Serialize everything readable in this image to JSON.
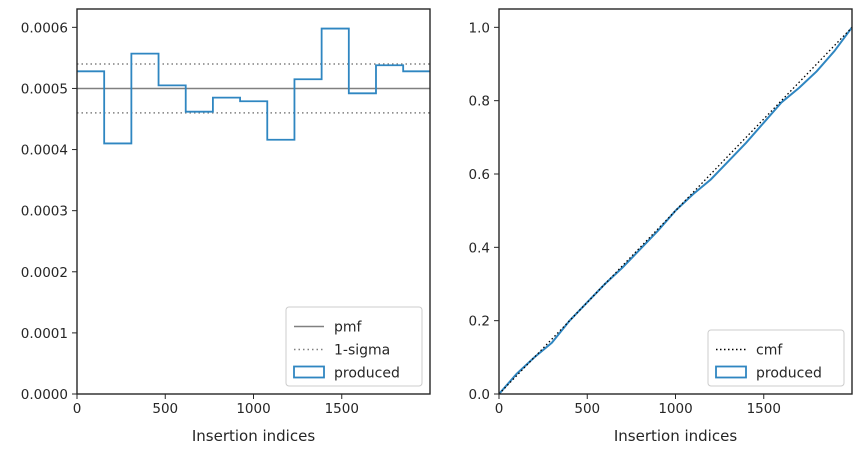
{
  "chart_data": [
    {
      "type": "step",
      "xlabel": "Insertion indices",
      "ylabel": "",
      "title": "",
      "xlim": [
        0,
        2000
      ],
      "ylim": [
        0,
        0.00063
      ],
      "xticks": [
        0,
        500,
        1000,
        1500
      ],
      "xtick_labels": [
        "0",
        "500",
        "1000",
        "1500"
      ],
      "yticks": [
        0,
        0.0001,
        0.0002,
        0.0003,
        0.0004,
        0.0005,
        0.0006
      ],
      "ytick_labels": [
        "0.0000",
        "0.0001",
        "0.0002",
        "0.0003",
        "0.0004",
        "0.0005",
        "0.0006"
      ],
      "grid": false,
      "legend_position": "lower right",
      "legend": [
        "pmf",
        "1-sigma",
        "produced"
      ],
      "reference_lines": [
        {
          "name": "pmf",
          "y": 0.0005,
          "color": "#808080",
          "style": "solid"
        },
        {
          "name": "1-sigma",
          "y": 0.00054,
          "color": "#808080",
          "style": "dotted"
        },
        {
          "name": "1-sigma",
          "y": 0.00046,
          "color": "#808080",
          "style": "dotted"
        }
      ],
      "series": [
        {
          "name": "produced",
          "color": "#2f86c1",
          "bin_edges": [
            0,
            154,
            308,
            462,
            616,
            770,
            924,
            1078,
            1232,
            1386,
            1540,
            1694,
            1848,
            2000
          ],
          "values": [
            0.000528,
            0.00041,
            0.000557,
            0.000505,
            0.000462,
            0.000485,
            0.000479,
            0.000416,
            0.000515,
            0.000598,
            0.000492,
            0.000538,
            0.000528
          ]
        }
      ]
    },
    {
      "type": "line",
      "xlabel": "Insertion indices",
      "ylabel": "",
      "title": "",
      "xlim": [
        0,
        2000
      ],
      "ylim": [
        0,
        1.05
      ],
      "xticks": [
        0,
        500,
        1000,
        1500
      ],
      "xtick_labels": [
        "0",
        "500",
        "1000",
        "1500"
      ],
      "yticks": [
        0,
        0.2,
        0.4,
        0.6,
        0.8,
        1.0
      ],
      "ytick_labels": [
        "0.0",
        "0.2",
        "0.4",
        "0.6",
        "0.8",
        "1.0"
      ],
      "grid": false,
      "legend_position": "lower right",
      "legend": [
        "cmf",
        "produced"
      ],
      "series": [
        {
          "name": "cmf",
          "color": "#000000",
          "style": "dotted",
          "x": [
            0,
            2000
          ],
          "y": [
            0,
            1.0
          ]
        },
        {
          "name": "produced",
          "color": "#2f86c1",
          "style": "solid",
          "x": [
            0,
            100,
            200,
            300,
            400,
            500,
            600,
            700,
            800,
            900,
            1000,
            1100,
            1200,
            1300,
            1400,
            1500,
            1600,
            1700,
            1800,
            1900,
            2000
          ],
          "y": [
            0,
            0.055,
            0.1,
            0.14,
            0.2,
            0.25,
            0.3,
            0.345,
            0.395,
            0.445,
            0.5,
            0.545,
            0.585,
            0.635,
            0.685,
            0.74,
            0.795,
            0.835,
            0.88,
            0.935,
            1.0
          ]
        }
      ]
    }
  ]
}
